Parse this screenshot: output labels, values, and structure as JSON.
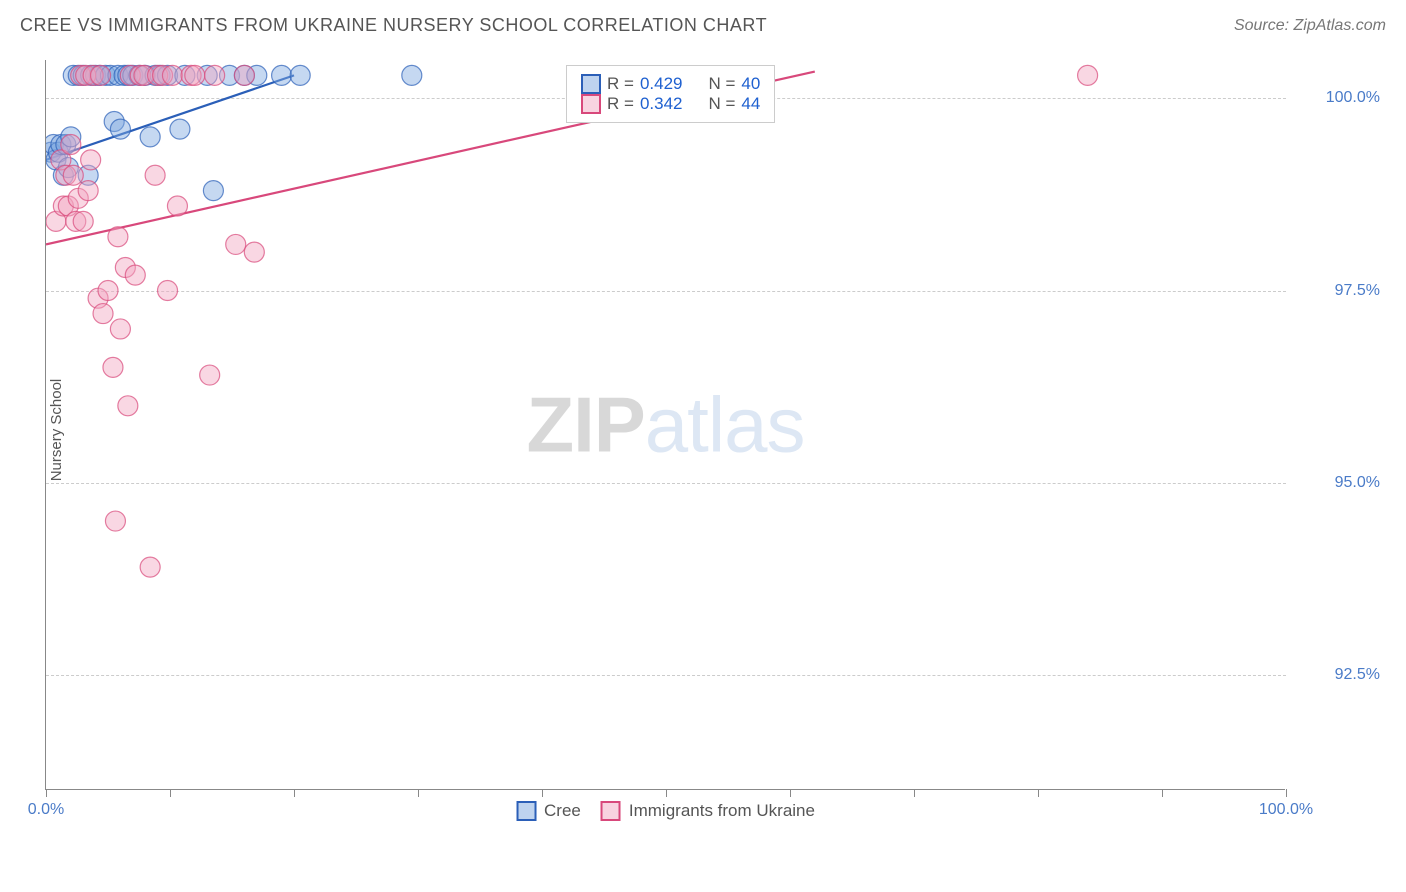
{
  "header": {
    "title": "CREE VS IMMIGRANTS FROM UKRAINE NURSERY SCHOOL CORRELATION CHART",
    "source": "Source: ZipAtlas.com"
  },
  "chart": {
    "type": "scatter",
    "ylabel": "Nursery School",
    "xlim": [
      0,
      100
    ],
    "ylim": [
      91.0,
      100.5
    ],
    "x_ticks": [
      0,
      10,
      20,
      30,
      40,
      50,
      60,
      70,
      80,
      90,
      100
    ],
    "x_tick_labels": [
      "0.0%",
      "",
      "",
      "",
      "",
      "",
      "",
      "",
      "",
      "",
      "100.0%"
    ],
    "y_ticks": [
      92.5,
      95.0,
      97.5,
      100.0
    ],
    "y_tick_labels": [
      "92.5%",
      "95.0%",
      "97.5%",
      "100.0%"
    ],
    "background_color": "#ffffff",
    "grid_color": "#cccccc",
    "axis_color": "#888888",
    "marker_radius": 10,
    "marker_opacity": 0.45,
    "line_width": 2.2,
    "watermark": {
      "zip": "ZIP",
      "atlas": "atlas"
    },
    "series": [
      {
        "name": "Cree",
        "color_stroke": "#2b5fb8",
        "color_fill": "#7ea8e0",
        "R": "0.429",
        "N": "40",
        "trend": {
          "x1": 0,
          "y1": 99.2,
          "x2": 20,
          "y2": 100.3
        },
        "points": [
          [
            0.4,
            99.3
          ],
          [
            0.6,
            99.4
          ],
          [
            0.8,
            99.2
          ],
          [
            1.0,
            99.3
          ],
          [
            1.2,
            99.4
          ],
          [
            1.4,
            99.0
          ],
          [
            1.6,
            99.4
          ],
          [
            1.8,
            99.1
          ],
          [
            2.0,
            99.5
          ],
          [
            2.2,
            100.3
          ],
          [
            2.6,
            100.3
          ],
          [
            3.0,
            100.3
          ],
          [
            3.4,
            99.0
          ],
          [
            3.6,
            100.3
          ],
          [
            4.0,
            100.3
          ],
          [
            4.3,
            100.3
          ],
          [
            4.8,
            100.3
          ],
          [
            5.2,
            100.3
          ],
          [
            5.5,
            99.7
          ],
          [
            5.8,
            100.3
          ],
          [
            6.0,
            99.6
          ],
          [
            6.3,
            100.3
          ],
          [
            6.6,
            100.3
          ],
          [
            7.0,
            100.3
          ],
          [
            7.5,
            100.3
          ],
          [
            8.0,
            100.3
          ],
          [
            8.4,
            99.5
          ],
          [
            8.8,
            100.3
          ],
          [
            9.2,
            100.3
          ],
          [
            9.8,
            100.3
          ],
          [
            10.8,
            99.6
          ],
          [
            11.2,
            100.3
          ],
          [
            13.0,
            100.3
          ],
          [
            13.5,
            98.8
          ],
          [
            14.8,
            100.3
          ],
          [
            16.0,
            100.3
          ],
          [
            17.0,
            100.3
          ],
          [
            19.0,
            100.3
          ],
          [
            20.5,
            100.3
          ],
          [
            29.5,
            100.3
          ]
        ]
      },
      {
        "name": "Immigrants from Ukraine",
        "color_stroke": "#d8487b",
        "color_fill": "#f2a7c1",
        "R": "0.342",
        "N": "44",
        "trend": {
          "x1": 0,
          "y1": 98.1,
          "x2": 62,
          "y2": 100.35
        },
        "points": [
          [
            0.8,
            98.4
          ],
          [
            1.2,
            99.2
          ],
          [
            1.4,
            98.6
          ],
          [
            1.6,
            99.0
          ],
          [
            1.8,
            98.6
          ],
          [
            2.0,
            99.4
          ],
          [
            2.2,
            99.0
          ],
          [
            2.4,
            98.4
          ],
          [
            2.6,
            98.7
          ],
          [
            2.8,
            100.3
          ],
          [
            3.0,
            98.4
          ],
          [
            3.2,
            100.3
          ],
          [
            3.4,
            98.8
          ],
          [
            3.6,
            99.2
          ],
          [
            3.8,
            100.3
          ],
          [
            4.2,
            97.4
          ],
          [
            4.4,
            100.3
          ],
          [
            4.6,
            97.2
          ],
          [
            5.0,
            97.5
          ],
          [
            5.4,
            96.5
          ],
          [
            5.6,
            94.5
          ],
          [
            5.8,
            98.2
          ],
          [
            6.0,
            97.0
          ],
          [
            6.4,
            97.8
          ],
          [
            6.6,
            96.0
          ],
          [
            6.8,
            100.3
          ],
          [
            7.2,
            97.7
          ],
          [
            7.6,
            100.3
          ],
          [
            7.9,
            100.3
          ],
          [
            8.4,
            93.9
          ],
          [
            8.8,
            99.0
          ],
          [
            9.0,
            100.3
          ],
          [
            9.4,
            100.3
          ],
          [
            9.8,
            97.5
          ],
          [
            10.2,
            100.3
          ],
          [
            10.6,
            98.6
          ],
          [
            11.7,
            100.3
          ],
          [
            12.0,
            100.3
          ],
          [
            13.2,
            96.4
          ],
          [
            13.6,
            100.3
          ],
          [
            15.3,
            98.1
          ],
          [
            16.0,
            100.3
          ],
          [
            16.8,
            98.0
          ],
          [
            84.0,
            100.3
          ]
        ]
      }
    ],
    "legend_stats": {
      "label_R": "R =",
      "label_N": "N ="
    },
    "bottom_legend": [
      {
        "label": "Cree",
        "stroke": "#2b5fb8",
        "fill": "#7ea8e0"
      },
      {
        "label": "Immigrants from Ukraine",
        "stroke": "#d8487b",
        "fill": "#f2a7c1"
      }
    ]
  }
}
